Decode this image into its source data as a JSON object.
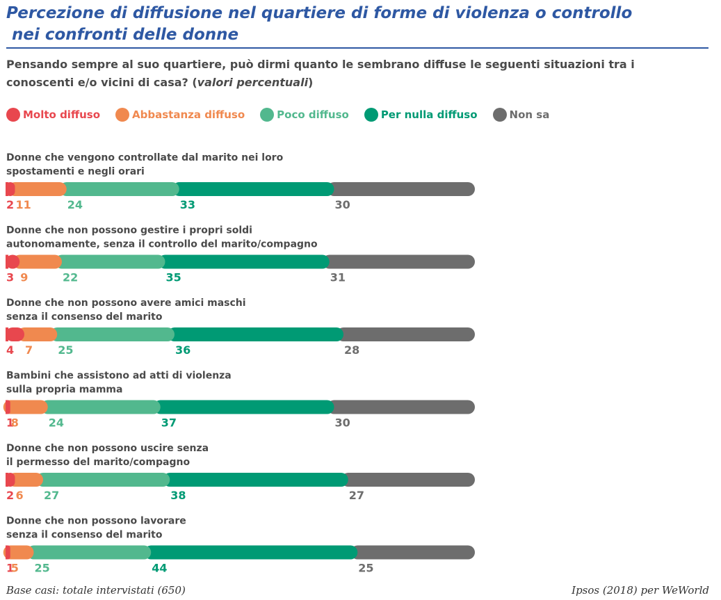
{
  "title_line1": "Percezione di diffusione nel quartiere di forme di violenza o controllo",
  "title_line2": " nei confronti delle donne",
  "subtitle_main": "Pensando sempre al suo quartiere, può dirmi quanto le sembrano diffuse le seguenti situazioni tra i conoscenti e/o vicini di casa? (",
  "subtitle_italic": "valori percentuali",
  "subtitle_end": ")",
  "footer_left": "Base casi: totale intervistati (650)",
  "footer_right": "Ipsos (2018) per WeWorld",
  "colors": {
    "molto": "#e8474e",
    "abbastanza": "#f0894f",
    "poco": "#52b88e",
    "per_nulla": "#009a74",
    "non_sa": "#6d6d6d"
  },
  "chart_data": {
    "type": "bar",
    "stacked": true,
    "orientation": "horizontal",
    "legend_position": "top-left",
    "series": [
      {
        "name": "Molto diffuso",
        "values": [
          2,
          3,
          4,
          1,
          2,
          1
        ]
      },
      {
        "name": "Abbastanza diffuso",
        "values": [
          11,
          9,
          7,
          8,
          6,
          5
        ]
      },
      {
        "name": "Poco diffuso",
        "values": [
          24,
          22,
          25,
          24,
          27,
          25
        ]
      },
      {
        "name": "Per nulla diffuso",
        "values": [
          33,
          35,
          36,
          37,
          38,
          44
        ]
      },
      {
        "name": "Non sa",
        "values": [
          30,
          31,
          28,
          30,
          27,
          25
        ]
      }
    ],
    "categories": [
      [
        "Donne che vengono controllate dal marito nei loro",
        "spostamenti e negli orari"
      ],
      [
        "Donne che non possono gestire i propri soldi",
        "autonomamente, senza il controllo del marito/compagno"
      ],
      [
        "Donne che non possono avere amici maschi",
        "senza il consenso del marito"
      ],
      [
        "Bambini che assistono ad atti di violenza",
        "sulla propria mamma"
      ],
      [
        "Donne che non possono uscire senza",
        "il permesso del marito/compagno"
      ],
      [
        "Donne che non possono lavorare",
        "senza il consenso del marito"
      ]
    ],
    "xlim": [
      0,
      100
    ]
  }
}
